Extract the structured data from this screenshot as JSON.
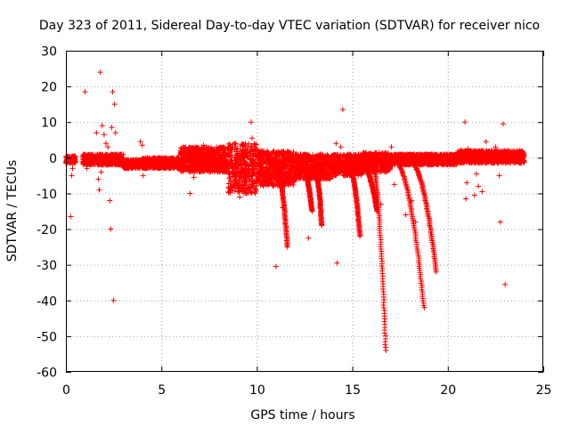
{
  "chart_data": {
    "type": "scatter",
    "title": "Day 323 of 2011, Sidereal Day-to-day VTEC variation (SDTVAR) for receiver nico",
    "xlabel": "GPS time / hours",
    "ylabel": "SDTVAR / TECUs",
    "xlim": [
      0,
      25
    ],
    "ylim": [
      -60,
      30
    ],
    "xticks": [
      0,
      5,
      10,
      15,
      20,
      25
    ],
    "yticks": [
      -60,
      -50,
      -40,
      -30,
      -20,
      -10,
      0,
      10,
      20,
      30
    ],
    "grid": true,
    "marker": "+",
    "color": "#ff0000",
    "series": [
      {
        "name": "SDTVAR",
        "band_segments": [
          [
            0.0,
            0.5,
            -1.5,
            0.5
          ],
          [
            0.9,
            3.0,
            -2.0,
            1.0
          ],
          [
            3.0,
            4.0,
            -3.0,
            -0.5
          ],
          [
            4.0,
            6.0,
            -3.0,
            0.0
          ],
          [
            6.0,
            8.5,
            -4.0,
            3.0
          ],
          [
            8.5,
            10.0,
            -10.0,
            4.0
          ],
          [
            10.0,
            12.0,
            -8.0,
            2.0
          ],
          [
            12.0,
            14.0,
            -6.0,
            1.0
          ],
          [
            14.0,
            15.5,
            -5.0,
            1.0
          ],
          [
            15.5,
            17.0,
            -4.0,
            1.5
          ],
          [
            17.0,
            20.5,
            -2.0,
            1.0
          ],
          [
            20.5,
            24.0,
            -1.5,
            2.0
          ]
        ],
        "trails": [
          {
            "x0": 11.0,
            "y0": -2.0,
            "x1": 11.6,
            "y1": -25.0
          },
          {
            "x0": 12.3,
            "y0": -2.0,
            "x1": 12.9,
            "y1": -15.0
          },
          {
            "x0": 13.0,
            "y0": -2.0,
            "x1": 13.4,
            "y1": -19.0
          },
          {
            "x0": 14.8,
            "y0": -2.0,
            "x1": 15.4,
            "y1": -22.0
          },
          {
            "x0": 15.5,
            "y0": -2.0,
            "x1": 16.3,
            "y1": -15.0
          },
          {
            "x0": 16.0,
            "y0": -1.0,
            "x1": 16.75,
            "y1": -54.0
          },
          {
            "x0": 17.2,
            "y0": -1.0,
            "x1": 18.75,
            "y1": -42.0
          },
          {
            "x0": 18.0,
            "y0": -1.0,
            "x1": 19.4,
            "y1": -32.0
          }
        ],
        "outliers": [
          [
            0.05,
            -1.0
          ],
          [
            0.1,
            -0.5
          ],
          [
            0.2,
            -1.5
          ],
          [
            0.25,
            -16.5
          ],
          [
            0.3,
            -5.0
          ],
          [
            0.35,
            -3.0
          ],
          [
            1.0,
            18.5
          ],
          [
            1.0,
            1.0
          ],
          [
            1.1,
            -3.0
          ],
          [
            1.6,
            7.0
          ],
          [
            1.7,
            -6.0
          ],
          [
            1.75,
            -9.0
          ],
          [
            1.8,
            24.0
          ],
          [
            1.85,
            -4.0
          ],
          [
            1.9,
            9.0
          ],
          [
            2.0,
            6.5
          ],
          [
            2.1,
            4.0
          ],
          [
            2.2,
            3.0
          ],
          [
            2.35,
            -20.0
          ],
          [
            2.4,
            8.5
          ],
          [
            2.45,
            18.5
          ],
          [
            2.5,
            -40.0
          ],
          [
            2.55,
            15.0
          ],
          [
            2.6,
            7.0
          ],
          [
            2.3,
            -12.0
          ],
          [
            3.9,
            4.5
          ],
          [
            4.0,
            3.5
          ],
          [
            4.05,
            -5.0
          ],
          [
            6.1,
            1.5
          ],
          [
            6.5,
            -10.0
          ],
          [
            6.7,
            -5.5
          ],
          [
            7.0,
            -3.0
          ],
          [
            7.2,
            3.5
          ],
          [
            9.1,
            -11.0
          ],
          [
            9.7,
            10.0
          ],
          [
            9.75,
            5.5
          ],
          [
            9.8,
            -8.0
          ],
          [
            11.0,
            -30.5
          ],
          [
            11.35,
            -14.0
          ],
          [
            12.7,
            -22.5
          ],
          [
            13.3,
            -10.0
          ],
          [
            14.15,
            4.0
          ],
          [
            14.2,
            -29.5
          ],
          [
            14.5,
            13.5
          ],
          [
            14.4,
            3.0
          ],
          [
            16.2,
            -11.0
          ],
          [
            16.5,
            -13.0
          ],
          [
            17.05,
            3.0
          ],
          [
            17.2,
            -7.5
          ],
          [
            17.8,
            -16.0
          ],
          [
            18.1,
            -12.0
          ],
          [
            18.3,
            -18.0
          ],
          [
            20.9,
            10.0
          ],
          [
            20.95,
            -11.5
          ],
          [
            21.0,
            -7.0
          ],
          [
            21.05,
            2.5
          ],
          [
            21.4,
            -10.5
          ],
          [
            21.5,
            -4.5
          ],
          [
            21.6,
            -8.0
          ],
          [
            21.8,
            -9.5
          ],
          [
            22.0,
            4.5
          ],
          [
            22.5,
            3.0
          ],
          [
            22.7,
            -5.0
          ],
          [
            22.75,
            -18.0
          ],
          [
            22.9,
            9.5
          ],
          [
            23.0,
            -35.5
          ],
          [
            23.2,
            1.0
          ]
        ]
      }
    ]
  }
}
